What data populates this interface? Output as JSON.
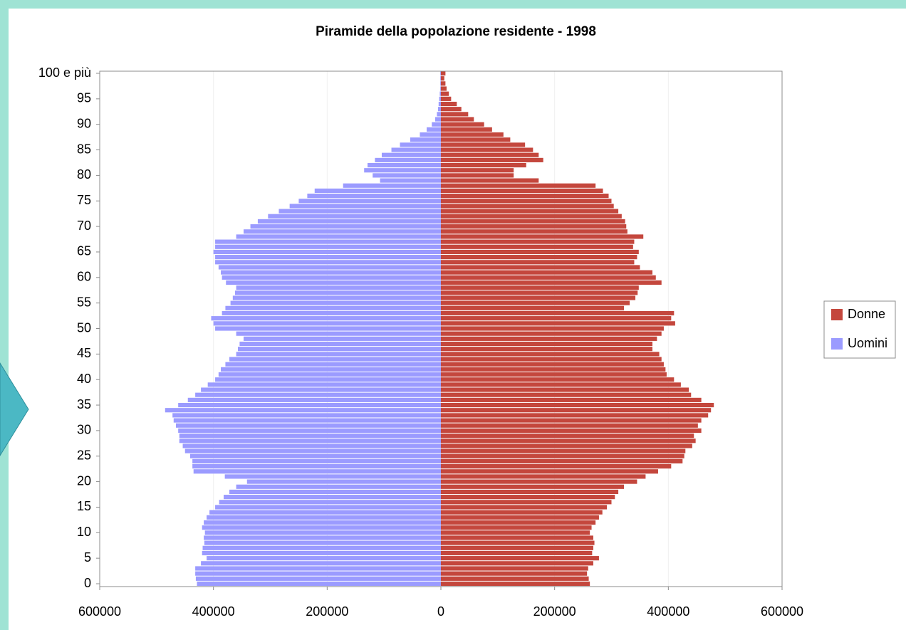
{
  "chart_data": {
    "type": "bar",
    "orientation": "horizontal",
    "title": "Piramide della popolazione residente - 1998",
    "categories": [
      "0",
      null,
      null,
      null,
      null,
      "5",
      null,
      null,
      null,
      null,
      "10",
      null,
      null,
      null,
      null,
      "15",
      null,
      null,
      null,
      null,
      "20",
      null,
      null,
      null,
      null,
      "25",
      null,
      null,
      null,
      null,
      "30",
      null,
      null,
      null,
      null,
      "35",
      null,
      null,
      null,
      null,
      "40",
      null,
      null,
      null,
      null,
      "45",
      null,
      null,
      null,
      null,
      "50",
      null,
      null,
      null,
      null,
      "55",
      null,
      null,
      null,
      null,
      "60",
      null,
      null,
      null,
      null,
      "65",
      null,
      null,
      null,
      null,
      "70",
      null,
      null,
      null,
      null,
      "75",
      null,
      null,
      null,
      null,
      "80",
      null,
      null,
      null,
      null,
      "85",
      null,
      null,
      null,
      null,
      "90",
      null,
      null,
      null,
      null,
      "95",
      null,
      null,
      null,
      null,
      "100 e più"
    ],
    "series": [
      {
        "name": "Donne",
        "color": "#c4473d",
        "values": [
          262000,
          260000,
          257000,
          259000,
          268000,
          278000,
          266000,
          268000,
          270000,
          268000,
          262000,
          265000,
          272000,
          278000,
          284000,
          292000,
          300000,
          306000,
          312000,
          322000,
          345000,
          360000,
          382000,
          405000,
          425000,
          428000,
          430000,
          442000,
          448000,
          445000,
          458000,
          452000,
          458000,
          470000,
          475000,
          480000,
          458000,
          440000,
          436000,
          422000,
          410000,
          397000,
          395000,
          392000,
          388000,
          384000,
          372000,
          372000,
          380000,
          388000,
          392000,
          412000,
          405000,
          410000,
          322000,
          332000,
          342000,
          346000,
          348000,
          388000,
          378000,
          372000,
          350000,
          340000,
          345000,
          348000,
          338000,
          340000,
          356000,
          328000,
          326000,
          324000,
          318000,
          312000,
          304000,
          300000,
          295000,
          285000,
          272000,
          172000,
          128000,
          128000,
          150000,
          180000,
          172000,
          162000,
          148000,
          122000,
          110000,
          90000,
          76000,
          58000,
          48000,
          36000,
          28000,
          18000,
          14000,
          10000,
          8000,
          6000,
          8000
        ]
      },
      {
        "name": "Uomini",
        "color": "#9b9bff",
        "values": [
          -429000,
          -431000,
          -432000,
          -432000,
          -422000,
          -412000,
          -420000,
          -419000,
          -416000,
          -417000,
          -415000,
          -420000,
          -417000,
          -412000,
          -407000,
          -397000,
          -390000,
          -382000,
          -372000,
          -360000,
          -341000,
          -380000,
          -435000,
          -437000,
          -437000,
          -441000,
          -450000,
          -454000,
          -460000,
          -460000,
          -462000,
          -466000,
          -470000,
          -472000,
          -485000,
          -462000,
          -445000,
          -432000,
          -422000,
          -410000,
          -397000,
          -391000,
          -387000,
          -379000,
          -372000,
          -360000,
          -357000,
          -354000,
          -347000,
          -360000,
          -397000,
          -400000,
          -404000,
          -385000,
          -379000,
          -370000,
          -366000,
          -362000,
          -360000,
          -378000,
          -385000,
          -387000,
          -391000,
          -397000,
          -397000,
          -400000,
          -397000,
          -397000,
          -360000,
          -347000,
          -335000,
          -322000,
          -304000,
          -285000,
          -266000,
          -250000,
          -235000,
          -222000,
          -172000,
          -107000,
          -120000,
          -135000,
          -129000,
          -116000,
          -104000,
          -87000,
          -72000,
          -54000,
          -37000,
          -25000,
          -16000,
          -10000,
          -7000,
          -5000,
          -4000,
          -3000,
          -2000,
          -1000,
          -1000,
          -1000,
          -1000
        ]
      }
    ],
    "xlim": [
      -600000,
      600000
    ],
    "xticks": [
      {
        "value": -600000,
        "label": "600000"
      },
      {
        "value": -400000,
        "label": "400000"
      },
      {
        "value": -200000,
        "label": "200000"
      },
      0,
      200000,
      400000,
      600000
    ],
    "negative_tick_color": "#ff0000",
    "grid": true,
    "legend": "right"
  }
}
